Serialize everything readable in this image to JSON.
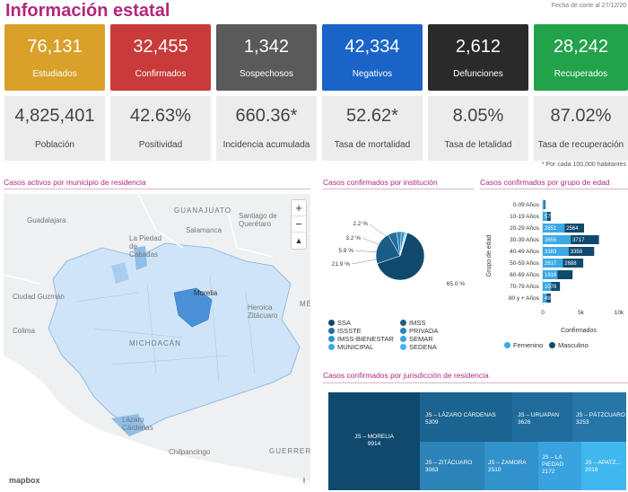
{
  "header": {
    "title": "Información estatal",
    "fecha": "Fecha de corte al 27/12/20"
  },
  "cards_top": [
    {
      "value": "76,131",
      "label": "Estudiados",
      "color": "#d9a12a"
    },
    {
      "value": "32,455",
      "label": "Confirmados",
      "color": "#c83b3a"
    },
    {
      "value": "1,342",
      "label": "Sospechosos",
      "color": "#5a5a5a"
    },
    {
      "value": "42,334",
      "label": "Negativos",
      "color": "#1a64c8"
    },
    {
      "value": "2,612",
      "label": "Defunciones",
      "color": "#2a2a2a"
    },
    {
      "value": "28,242",
      "label": "Recuperados",
      "color": "#22a34a"
    }
  ],
  "cards_bottom": [
    {
      "value": "4,825,401",
      "label": "Población"
    },
    {
      "value": "42.63%",
      "label": "Positividad"
    },
    {
      "value": "660.36*",
      "label": "Incidencia acumulada"
    },
    {
      "value": "52.62*",
      "label": "Tasa de mortalidad"
    },
    {
      "value": "8.05%",
      "label": "Tasa de letalidad"
    },
    {
      "value": "87.02%",
      "label": "Tasa de recuperación"
    }
  ],
  "note": "* Por cada 100,000 habitantes",
  "sections": {
    "map_title": "Casos activos por municipio de residencia",
    "inst_title": "Casos confirmados por institución",
    "edad_title": "Casos confirmados por grupo de edad",
    "juris_title": "Casos confirmados por jurisdicción de residencia"
  },
  "map": {
    "labels": [
      "GUANAJUATO",
      "Guadalajara",
      "Salamanca",
      "Santiago de Querétaro",
      "La Piedad de Cabadas",
      "Ciudad Guzmán",
      "Morelia",
      "Heroica Zitácuaro",
      "MÉXICO",
      "MICHOACÁN",
      "Colima",
      "Lázaro Cárdenas",
      "Chilpancingo",
      "GUERRERO"
    ],
    "attribution": "mapbox",
    "info": "i",
    "controls": [
      "+",
      "−",
      "▲"
    ]
  },
  "institucion": {
    "labels": [
      "65.0 %",
      "21.9 %",
      "5.9 %",
      "3.2 %",
      "2.2 %"
    ],
    "legend": [
      {
        "name": "SSA",
        "color": "#0f4a6e"
      },
      {
        "name": "IMSS",
        "color": "#1a5d86"
      },
      {
        "name": "ISSSTE",
        "color": "#236f9e"
      },
      {
        "name": "PRIVADA",
        "color": "#2c83b8"
      },
      {
        "name": "IMSS-BIENESTAR",
        "color": "#3292cc"
      },
      {
        "name": "SEMAR",
        "color": "#38a3df"
      },
      {
        "name": "MUNICIPAL",
        "color": "#3aa9e6"
      },
      {
        "name": "SEDENA",
        "color": "#41b7f0"
      }
    ]
  },
  "chart_data": [
    {
      "type": "pie",
      "title": "Casos confirmados por institución",
      "categories": [
        "SSA",
        "IMSS",
        "ISSSTE",
        "PRIVADA",
        "IMSS-BIENESTAR",
        "SEMAR",
        "MUNICIPAL",
        "SEDENA"
      ],
      "values": [
        65.0,
        21.9,
        5.9,
        3.2,
        2.2,
        0.8,
        0.6,
        0.4
      ]
    },
    {
      "type": "bar",
      "title": "Casos confirmados por grupo de edad",
      "orientation": "horizontal",
      "categories": [
        "0-09 Años",
        "10-19 Años",
        "20-29 Años",
        "30-39 Años",
        "40-49 Años",
        "50-59 Años",
        "60-69 Años",
        "70-79 Años",
        "80 y + Años"
      ],
      "series": [
        {
          "name": "Femenino",
          "values": [
            190,
            577,
            2851,
            3655,
            3383,
            2617,
            1916,
            1078,
            491
          ]
        },
        {
          "name": "Masculino",
          "values": [
            149,
            465,
            2564,
            3717,
            3358,
            2688,
            1991,
            1174,
            560
          ]
        }
      ],
      "data_labels": [
        "149",
        "577",
        "2851",
        "2564",
        "3655",
        "3717",
        "3383",
        "3358",
        "2617",
        "2688",
        "1916",
        "1078",
        "491"
      ],
      "xlabel": "Confirmados",
      "ylabel": "Grupo de edad",
      "xticks": [
        "0",
        "5k",
        "10k"
      ],
      "xlim": [
        0,
        10000
      ]
    },
    {
      "type": "treemap",
      "title": "Casos confirmados por jurisdicción de residencia",
      "categories": [
        "JS - MORELIA",
        "JS - LÁZARO CÁRDENAS",
        "JS - URUAPAN",
        "JS - PÁTZCUARO",
        "JS - ZITÁCUARO",
        "JS - ZAMORA",
        "JS - LA PIEDAD",
        "JS - APATZINGÁN"
      ],
      "values": [
        9914,
        5309,
        3626,
        3253,
        3063,
        2510,
        2172,
        2018
      ]
    }
  ],
  "edad_legend": [
    {
      "name": "Femenino",
      "color": "#3aa9e6"
    },
    {
      "name": "Masculino",
      "color": "#0f4a6e"
    }
  ],
  "treemap_labels": [
    {
      "name": "JS – MORELIA",
      "value": "9914"
    },
    {
      "name": "JS – LÁZARO CÁRDENAS",
      "value": "5309"
    },
    {
      "name": "JS – URUAPAN",
      "value": "3626"
    },
    {
      "name": "JS – PÁTZCUARO",
      "value": "3253"
    },
    {
      "name": "JS – ZITÁCUARO",
      "value": "3063"
    },
    {
      "name": "JS – ZAMORA",
      "value": "2510"
    },
    {
      "name": "JS – LA PIEDAD",
      "value": "2172"
    },
    {
      "name": "JS – APATZ...",
      "value": "2018"
    }
  ]
}
